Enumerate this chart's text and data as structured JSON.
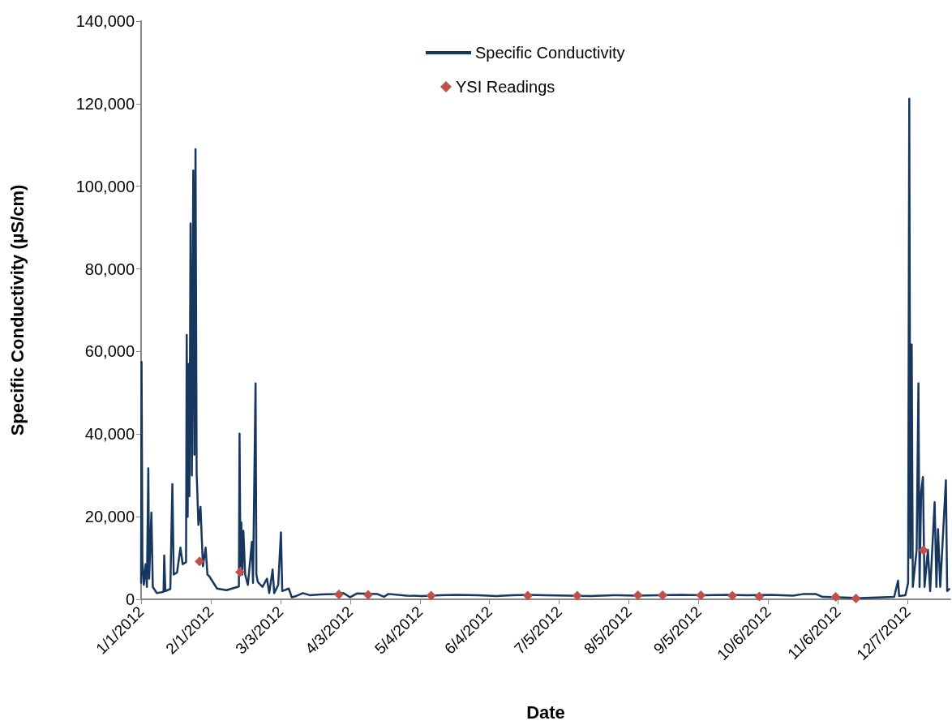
{
  "chart_data": {
    "type": "line",
    "xlabel": "Date",
    "ylabel": "Specific Conductivity (µS/cm)",
    "legend": "top",
    "grid": false,
    "xlim": [
      "2012-01-01",
      "2012-12-26"
    ],
    "xticks": [
      {
        "value": "2012-01-01",
        "label": "1/1/2012"
      },
      {
        "value": "2012-02-01",
        "label": "2/1/2012"
      },
      {
        "value": "2012-03-03",
        "label": "3/3/2012"
      },
      {
        "value": "2012-04-03",
        "label": "4/3/2012"
      },
      {
        "value": "2012-05-04",
        "label": "5/4/2012"
      },
      {
        "value": "2012-06-04",
        "label": "6/4/2012"
      },
      {
        "value": "2012-07-05",
        "label": "7/5/2012"
      },
      {
        "value": "2012-08-05",
        "label": "8/5/2012"
      },
      {
        "value": "2012-09-05",
        "label": "9/5/2012"
      },
      {
        "value": "2012-10-06",
        "label": "10/6/2012"
      },
      {
        "value": "2012-11-06",
        "label": "11/6/2012"
      },
      {
        "value": "2012-12-07",
        "label": "12/7/2012"
      }
    ],
    "ylim": [
      0,
      140000
    ],
    "yticks": [
      {
        "value": 0,
        "label": "0"
      },
      {
        "value": 20000,
        "label": "20,000"
      },
      {
        "value": 40000,
        "label": "40,000"
      },
      {
        "value": 60000,
        "label": "60,000"
      },
      {
        "value": 80000,
        "label": "80,000"
      },
      {
        "value": 100000,
        "label": "100,000"
      },
      {
        "value": 120000,
        "label": "120,000"
      },
      {
        "value": 140000,
        "label": "140,000"
      }
    ],
    "series": [
      {
        "name": "Specific Conductivity",
        "color": "#17375e",
        "marker": "none",
        "line_style": "solid",
        "x": [
          "2012-01-01T00:00",
          "2012-01-01T05:00",
          "2012-01-01T14:00",
          "2012-01-02T05:00",
          "2012-01-03T00:00",
          "2012-01-03T14:00",
          "2012-01-04T05:00",
          "2012-01-04T14:00",
          "2012-01-05T14:00",
          "2012-01-06T05:00",
          "2012-01-08T00:00",
          "2012-01-11T00:00",
          "2012-01-11T07:00",
          "2012-01-11T19:00",
          "2012-01-14T00:00",
          "2012-01-14T22:00",
          "2012-01-15T12:00",
          "2012-01-17T00:00",
          "2012-01-18T12:00",
          "2012-01-19T12:00",
          "2012-01-21T00:00",
          "2012-01-21T07:00",
          "2012-01-21T17:00",
          "2012-01-22T02:00",
          "2012-01-22T12:00",
          "2012-01-23T00:00",
          "2012-01-23T14:00",
          "2012-01-24T05:00",
          "2012-01-24T17:00",
          "2012-01-25T05:00",
          "2012-01-25T17:00",
          "2012-01-26T12:00",
          "2012-01-27T10:00",
          "2012-01-28T12:00",
          "2012-01-29T17:00",
          "2012-01-30T12:00",
          "2012-01-31T10:00",
          "2012-02-03T19:00",
          "2012-02-08T00:00",
          "2012-02-13T12:00",
          "2012-02-13T19:00",
          "2012-02-14T05:00",
          "2012-02-14T14:00",
          "2012-02-15T00:00",
          "2012-02-15T12:00",
          "2012-02-16T07:00",
          "2012-02-17T12:00",
          "2012-02-19T07:00",
          "2012-02-19T19:00",
          "2012-02-20T22:00",
          "2012-02-21T07:00",
          "2012-02-21T22:00",
          "2012-02-24T00:00",
          "2012-02-26T00:00",
          "2012-02-27T00:00",
          "2012-02-28T12:00",
          "2012-02-29T05:00",
          "2012-03-02T00:00",
          "2012-03-03T05:00",
          "2012-03-03T19:00",
          "2012-03-06T17:00",
          "2012-03-08T00:00",
          "2012-03-10T00:00",
          "2012-03-13T00:00",
          "2012-03-16T00:00",
          "2012-03-21T00:00",
          "2012-03-27T00:00",
          "2012-03-31T00:00",
          "2012-04-03T00:00",
          "2012-04-06T00:00",
          "2012-04-15T00:00",
          "2012-04-18T00:00",
          "2012-04-20T00:00",
          "2012-04-28T00:00",
          "2012-05-05T00:00",
          "2012-05-13T00:00",
          "2012-05-20T00:00",
          "2012-05-30T00:00",
          "2012-06-07T00:00",
          "2012-06-14T00:00",
          "2012-06-21T00:00",
          "2012-06-29T00:00",
          "2012-07-09T00:00",
          "2012-07-19T00:00",
          "2012-07-29T00:00",
          "2012-08-08T00:00",
          "2012-08-18T00:00",
          "2012-08-28T00:00",
          "2012-09-07T00:00",
          "2012-09-17T00:00",
          "2012-09-27T00:00",
          "2012-10-07T00:00",
          "2012-10-17T00:00",
          "2012-10-22T00:00",
          "2012-10-27T00:00",
          "2012-10-30T00:00",
          "2012-11-06T00:00",
          "2012-11-16T00:00",
          "2012-11-26T00:00",
          "2012-12-01T00:00",
          "2012-12-02T17:00",
          "2012-12-03T05:00",
          "2012-12-06T00:00",
          "2012-12-07T05:00",
          "2012-12-07T17:00",
          "2012-12-08T05:00",
          "2012-12-08T19:00",
          "2012-12-09T07:00",
          "2012-12-11T00:00",
          "2012-12-11T19:00",
          "2012-12-12T07:00",
          "2012-12-13T00:00",
          "2012-12-13T19:00",
          "2012-12-14T12:00",
          "2012-12-16T00:00",
          "2012-12-17T00:00",
          "2012-12-19T00:00",
          "2012-12-19T19:00",
          "2012-12-20T12:00",
          "2012-12-21T12:00",
          "2012-12-24T00:00",
          "2012-12-24T14:00",
          "2012-12-25T12:00"
        ],
        "values": [
          4000,
          57500,
          9000,
          3500,
          8500,
          3000,
          31700,
          5000,
          21000,
          3000,
          1500,
          1800,
          10600,
          2000,
          2500,
          27900,
          6000,
          6500,
          12500,
          8500,
          9000,
          64000,
          20000,
          57000,
          25000,
          91000,
          30000,
          103800,
          35000,
          109000,
          30700,
          18000,
          22400,
          8000,
          12500,
          6000,
          5500,
          2600,
          2200,
          3100,
          40100,
          8000,
          18600,
          6000,
          16600,
          6000,
          3500,
          13900,
          4000,
          52300,
          6000,
          4200,
          3000,
          5000,
          1500,
          7200,
          1500,
          3500,
          16200,
          2000,
          2600,
          500,
          800,
          1500,
          1000,
          1200,
          1300,
          1500,
          500,
          1400,
          1300,
          600,
          1300,
          900,
          800,
          1000,
          1100,
          1000,
          800,
          1000,
          1100,
          1000,
          900,
          800,
          1000,
          900,
          1000,
          1100,
          1000,
          1100,
          1000,
          1100,
          900,
          1300,
          1300,
          600,
          500,
          300,
          500,
          600,
          4500,
          800,
          1000,
          4000,
          121200,
          10000,
          61700,
          3000,
          12000,
          52300,
          3000,
          26000,
          29600,
          3000,
          12000,
          2000,
          23500,
          3000,
          17000,
          3000,
          28800,
          2000,
          2500
        ]
      },
      {
        "name": "YSI Readings",
        "type": "scatter",
        "color": "#c0504d",
        "marker": "diamond",
        "x": [
          "2012-01-27",
          "2012-02-14",
          "2012-03-29",
          "2012-04-11",
          "2012-05-09",
          "2012-06-21",
          "2012-07-13",
          "2012-08-09",
          "2012-08-20",
          "2012-09-06",
          "2012-09-20",
          "2012-10-02",
          "2012-11-05",
          "2012-11-14",
          "2012-12-14"
        ],
        "values": [
          9200,
          6600,
          1200,
          1100,
          900,
          900,
          900,
          1000,
          1000,
          1000,
          900,
          700,
          600,
          200,
          11900
        ]
      }
    ]
  }
}
